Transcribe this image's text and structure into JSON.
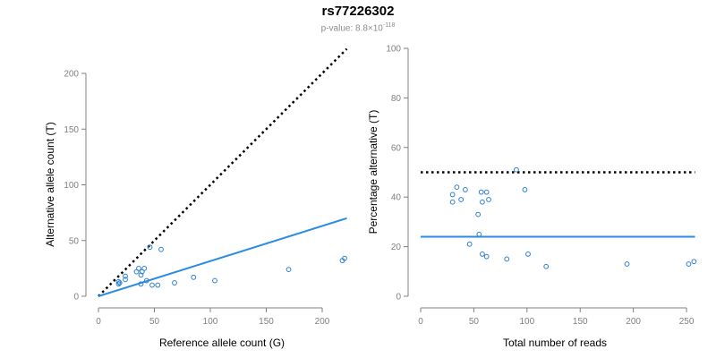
{
  "title": "rs77226302",
  "subtitle": {
    "prefix": "p-value: 8.8×10",
    "exponent": "-118"
  },
  "colors": {
    "points": "#2b7fd4",
    "fit_line": "#2b8ce6",
    "reference_line": "#000000",
    "axis": "#808080",
    "tick_text": "#808080"
  },
  "chart_data": [
    {
      "type": "scatter",
      "xlabel": "Reference allele count (G)",
      "ylabel": "Alternative allele count (T)",
      "xlim": [
        0,
        220
      ],
      "ylim": [
        0,
        200
      ],
      "xticks": [
        0,
        50,
        100,
        150,
        200
      ],
      "yticks": [
        0,
        50,
        100,
        150,
        200
      ],
      "grid": false,
      "points": [
        {
          "x": 18,
          "y": 11
        },
        {
          "x": 18,
          "y": 13
        },
        {
          "x": 19,
          "y": 12
        },
        {
          "x": 24,
          "y": 15
        },
        {
          "x": 24,
          "y": 18
        },
        {
          "x": 34,
          "y": 22
        },
        {
          "x": 36,
          "y": 25
        },
        {
          "x": 38,
          "y": 19
        },
        {
          "x": 39,
          "y": 22
        },
        {
          "x": 38,
          "y": 11
        },
        {
          "x": 41,
          "y": 25
        },
        {
          "x": 43,
          "y": 14
        },
        {
          "x": 46,
          "y": 44
        },
        {
          "x": 48,
          "y": 10
        },
        {
          "x": 53,
          "y": 10
        },
        {
          "x": 56,
          "y": 42
        },
        {
          "x": 68,
          "y": 12
        },
        {
          "x": 85,
          "y": 17
        },
        {
          "x": 104,
          "y": 14
        },
        {
          "x": 170,
          "y": 24
        },
        {
          "x": 218,
          "y": 32
        },
        {
          "x": 220,
          "y": 34
        }
      ],
      "reference_line": {
        "style": "dotted",
        "x": [
          0,
          222
        ],
        "y": [
          0,
          222
        ]
      },
      "fit_line": {
        "style": "solid",
        "x": [
          0,
          222
        ],
        "y": [
          0,
          70
        ]
      }
    },
    {
      "type": "scatter",
      "xlabel": "Total number of reads",
      "ylabel": "Percentage alternative (T)",
      "xlim": [
        0,
        255
      ],
      "ylim": [
        0,
        100
      ],
      "xticks": [
        0,
        50,
        100,
        150,
        200,
        250
      ],
      "yticks": [
        0,
        20,
        40,
        60,
        80,
        100
      ],
      "grid": false,
      "points": [
        {
          "x": 30,
          "y": 41
        },
        {
          "x": 30,
          "y": 38
        },
        {
          "x": 34,
          "y": 44
        },
        {
          "x": 38,
          "y": 39
        },
        {
          "x": 42,
          "y": 43
        },
        {
          "x": 46,
          "y": 21
        },
        {
          "x": 54,
          "y": 33
        },
        {
          "x": 55,
          "y": 25
        },
        {
          "x": 57,
          "y": 42
        },
        {
          "x": 58,
          "y": 17
        },
        {
          "x": 58,
          "y": 38
        },
        {
          "x": 62,
          "y": 42
        },
        {
          "x": 62,
          "y": 16
        },
        {
          "x": 64,
          "y": 39
        },
        {
          "x": 81,
          "y": 15
        },
        {
          "x": 90,
          "y": 51
        },
        {
          "x": 98,
          "y": 43
        },
        {
          "x": 101,
          "y": 17
        },
        {
          "x": 118,
          "y": 12
        },
        {
          "x": 194,
          "y": 13
        },
        {
          "x": 252,
          "y": 13
        },
        {
          "x": 257,
          "y": 14
        }
      ],
      "reference_line": {
        "style": "dotted",
        "x": [
          0,
          258
        ],
        "y": [
          50,
          50
        ]
      },
      "fit_line": {
        "style": "solid",
        "x": [
          0,
          258
        ],
        "y": [
          24,
          24
        ]
      }
    }
  ]
}
